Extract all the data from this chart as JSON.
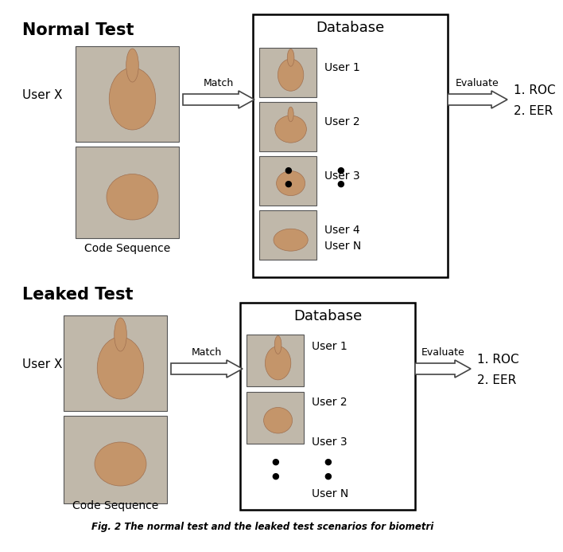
{
  "bg_color": "#ffffff",
  "fig_width": 6.4,
  "fig_height": 6.73,
  "caption": "Fig. 2 The normal test and the leaked test scenarios for biometri",
  "normal": {
    "title": "Normal Test",
    "user_label": "User X",
    "code_seq": "Code Sequence",
    "match": "Match",
    "db_title": "Database",
    "evaluate": "Evaluate",
    "results": [
      "1. ROC",
      "2. EER"
    ],
    "user_labels": [
      "User 1",
      "User 2",
      "User 3",
      "User 4"
    ],
    "user_n": "User N"
  },
  "leaked": {
    "title": "Leaked Test",
    "user_label": "User X",
    "code_seq": "Code Sequence",
    "match": "Match",
    "db_title": "Database",
    "evaluate": "Evaluate",
    "results": [
      "1. ROC",
      "2. EER"
    ],
    "user_labels": [
      "User 1",
      "User 2",
      "User 3"
    ],
    "user_n": "User N"
  },
  "img_color_light": "#c8bfb0",
  "img_color_dark": "#9e8e7a",
  "hand_skin": "#c4956a",
  "bg_img": "#b8b0a0"
}
